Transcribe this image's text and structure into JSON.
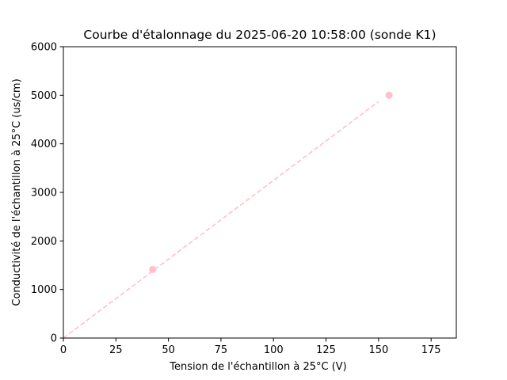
{
  "chart_data": {
    "type": "scatter",
    "title": "Courbe d'étalonnage du 2025-06-20 10:58:00 (sonde K1)",
    "xlabel": "Tension  de l'échantillon à 25°C (V)",
    "ylabel": "Conductivité de l'échantillon à 25°C (us/cm)",
    "xlim": [
      0,
      187
    ],
    "ylim": [
      0,
      6000
    ],
    "xticks": [
      0,
      25,
      50,
      75,
      100,
      125,
      150,
      175
    ],
    "yticks": [
      0,
      1000,
      2000,
      3000,
      4000,
      5000,
      6000
    ],
    "grid": false,
    "legend": "none",
    "color": "#ffc0cb",
    "points": [
      {
        "x": 42.5,
        "y": 1413
      },
      {
        "x": 155,
        "y": 5000
      }
    ],
    "fit_line": {
      "style": "dashed",
      "x": [
        0,
        150
      ],
      "y": [
        0,
        4870
      ]
    }
  }
}
